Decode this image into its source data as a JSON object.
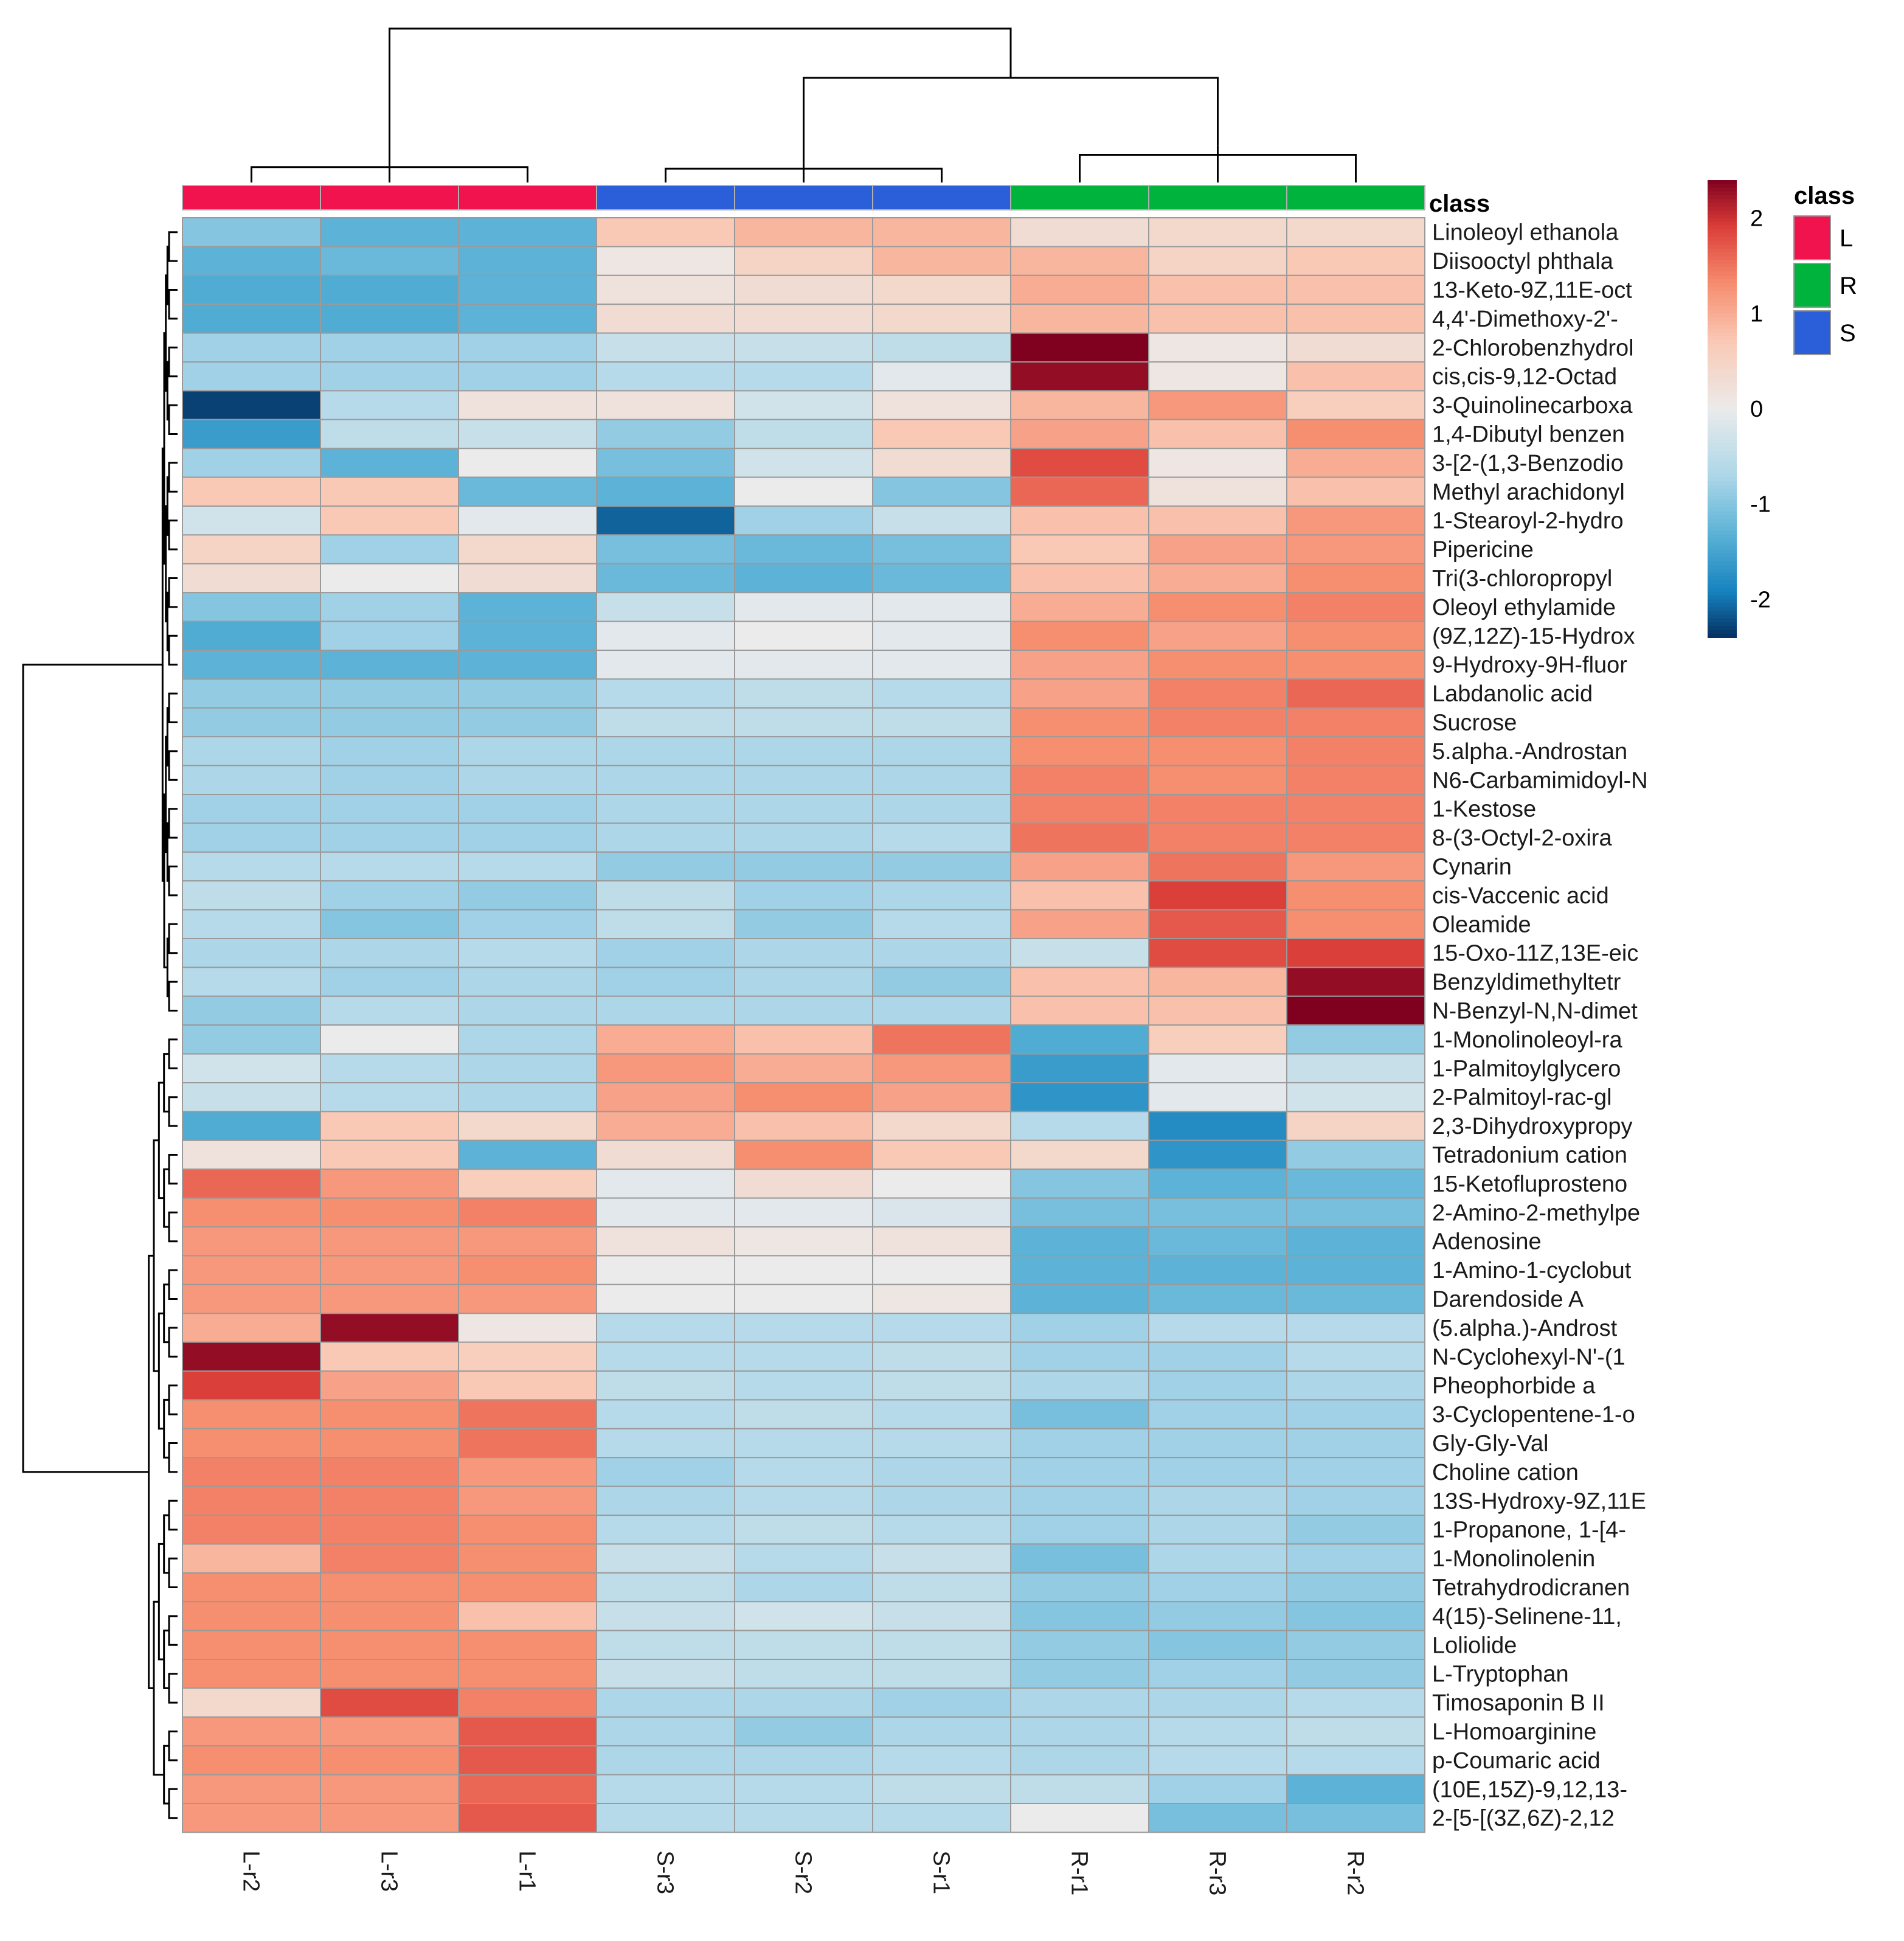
{
  "chart_data": {
    "type": "heatmap",
    "title": "",
    "columns": [
      "L-r2",
      "L-r3",
      "L-r1",
      "S-r3",
      "S-r2",
      "S-r1",
      "R-r1",
      "R-r3",
      "R-r2"
    ],
    "column_classes": [
      "L",
      "L",
      "L",
      "S",
      "S",
      "S",
      "R",
      "R",
      "R"
    ],
    "class_annotation_label": "class",
    "class_legend": {
      "title": "class",
      "items": [
        {
          "name": "L",
          "color": "#f0134d"
        },
        {
          "name": "R",
          "color": "#00b33c"
        },
        {
          "name": "S",
          "color": "#2b5fd9"
        }
      ]
    },
    "color_scale": {
      "min": -2.4,
      "max": 2.4,
      "low_color": "#053061",
      "mid_color": "#ebebeb",
      "high_color": "#800020",
      "ticks": [
        "2",
        "1",
        "0",
        "-1",
        "-2"
      ],
      "tick_values": [
        2,
        1,
        0,
        -1,
        -2
      ]
    },
    "rows": [
      "Linoleoyl ethanola",
      "Diisooctyl phthala",
      "13-Keto-9Z,11E-oct",
      "4,4'-Dimethoxy-2'-",
      "2-Chlorobenzhydrol",
      "cis,cis-9,12-Octad",
      "3-Quinolinecarboxa",
      "1,4-Dibutyl benzen",
      "3-[2-(1,3-Benzodio",
      "Methyl arachidonyl",
      "1-Stearoyl-2-hydro",
      "Pipericine",
      "Tri(3-chloropropyl",
      "Oleoyl ethylamide",
      "(9Z,12Z)-15-Hydrox",
      "9-Hydroxy-9H-fluor",
      "Labdanolic acid",
      "Sucrose",
      "5.alpha.-Androstan",
      "N6-Carbamimidoyl-N",
      "1-Kestose",
      "8-(3-Octyl-2-oxira",
      "Cynarin",
      "cis-Vaccenic acid",
      "Oleamide",
      "15-Oxo-11Z,13E-eic",
      "Benzyldimethyltetr",
      "N-Benzyl-N,N-dimet",
      "1-Monolinoleoyl-ra",
      "1-Palmitoylglycero",
      "2-Palmitoyl-rac-gl",
      "2,3-Dihydroxypropy",
      "Tetradonium cation",
      "15-Ketofluprosteno",
      "2-Amino-2-methylpe",
      "Adenosine",
      "1-Amino-1-cyclobut",
      "Darendoside A",
      "(5.alpha.)-Androst",
      "N-Cyclohexyl-N'-(1",
      "Pheophorbide a",
      "3-Cyclopentene-1-o",
      "Gly-Gly-Val",
      "Choline cation",
      "13S-Hydroxy-9Z,11E",
      "1-Propanone, 1-[4-",
      "1-Monolinolenin",
      "Tetrahydrodicranen",
      "4(15)-Selinene-11,",
      "Loliolide",
      "L-Tryptophan",
      "Timosaponin B II",
      "L-Homoarginine",
      "p-Coumaric acid",
      "(10E,15Z)-9,12,13-",
      "2-[5-[(3Z,6Z)-2,12"
    ],
    "values": [
      [
        -1.0,
        -1.3,
        -1.3,
        0.7,
        0.9,
        0.9,
        0.3,
        0.4,
        0.4
      ],
      [
        -1.3,
        -1.2,
        -1.3,
        0.1,
        0.5,
        0.9,
        0.9,
        0.5,
        0.7
      ],
      [
        -1.4,
        -1.4,
        -1.3,
        0.2,
        0.3,
        0.4,
        1.0,
        0.8,
        0.8
      ],
      [
        -1.4,
        -1.4,
        -1.3,
        0.3,
        0.3,
        0.4,
        0.9,
        0.8,
        0.8
      ],
      [
        -0.8,
        -0.8,
        -0.8,
        -0.4,
        -0.4,
        -0.5,
        2.4,
        0.1,
        0.3
      ],
      [
        -0.8,
        -0.8,
        -0.8,
        -0.6,
        -0.6,
        -0.1,
        2.3,
        0.1,
        0.8
      ],
      [
        -2.3,
        -0.6,
        0.2,
        0.2,
        -0.3,
        0.2,
        0.9,
        1.2,
        0.6
      ],
      [
        -1.6,
        -0.5,
        -0.4,
        -0.9,
        -0.5,
        0.7,
        1.1,
        0.8,
        1.3
      ],
      [
        -0.8,
        -1.3,
        0.0,
        -1.1,
        -0.3,
        0.3,
        1.8,
        0.1,
        1.0
      ],
      [
        0.7,
        0.7,
        -1.2,
        -1.3,
        0.0,
        -1.0,
        1.6,
        0.2,
        0.8
      ],
      [
        -0.3,
        0.7,
        -0.1,
        -2.1,
        -0.8,
        -0.4,
        0.8,
        0.8,
        1.2
      ],
      [
        0.5,
        -0.8,
        0.4,
        -1.1,
        -1.2,
        -1.1,
        0.7,
        1.1,
        1.2
      ],
      [
        0.3,
        0.0,
        0.3,
        -1.2,
        -1.3,
        -1.2,
        0.8,
        1.0,
        1.3
      ],
      [
        -1.0,
        -0.8,
        -1.3,
        -0.4,
        -0.1,
        -0.1,
        1.0,
        1.3,
        1.4
      ],
      [
        -1.4,
        -0.8,
        -1.3,
        -0.1,
        0.0,
        -0.1,
        1.3,
        1.1,
        1.3
      ],
      [
        -1.3,
        -1.3,
        -1.3,
        -0.1,
        -0.1,
        -0.1,
        1.1,
        1.3,
        1.3
      ],
      [
        -0.9,
        -0.9,
        -0.9,
        -0.6,
        -0.5,
        -0.6,
        1.1,
        1.4,
        1.6
      ],
      [
        -0.9,
        -0.9,
        -0.9,
        -0.5,
        -0.5,
        -0.5,
        1.3,
        1.4,
        1.4
      ],
      [
        -0.7,
        -0.8,
        -0.7,
        -0.7,
        -0.7,
        -0.7,
        1.3,
        1.3,
        1.4
      ],
      [
        -0.7,
        -0.8,
        -0.7,
        -0.7,
        -0.7,
        -0.7,
        1.4,
        1.3,
        1.4
      ],
      [
        -0.8,
        -0.8,
        -0.8,
        -0.7,
        -0.7,
        -0.7,
        1.4,
        1.4,
        1.4
      ],
      [
        -0.8,
        -0.8,
        -0.8,
        -0.7,
        -0.7,
        -0.6,
        1.5,
        1.4,
        1.4
      ],
      [
        -0.6,
        -0.6,
        -0.6,
        -0.9,
        -0.9,
        -0.9,
        1.1,
        1.5,
        1.2
      ],
      [
        -0.5,
        -0.8,
        -0.9,
        -0.5,
        -0.8,
        -0.7,
        0.8,
        1.9,
        1.3
      ],
      [
        -0.6,
        -1.0,
        -0.8,
        -0.5,
        -0.9,
        -0.6,
        1.1,
        1.7,
        1.3
      ],
      [
        -0.7,
        -0.7,
        -0.6,
        -0.8,
        -0.7,
        -0.7,
        -0.4,
        1.8,
        1.9
      ],
      [
        -0.6,
        -0.8,
        -0.7,
        -0.8,
        -0.7,
        -0.9,
        0.8,
        0.9,
        2.3
      ],
      [
        -0.9,
        -0.6,
        -0.7,
        -0.7,
        -0.7,
        -0.7,
        0.8,
        0.8,
        2.4
      ],
      [
        -0.9,
        0.0,
        -0.7,
        1.0,
        0.8,
        1.5,
        -1.4,
        0.6,
        -0.9
      ],
      [
        -0.3,
        -0.6,
        -0.7,
        1.2,
        1.0,
        1.2,
        -1.6,
        -0.1,
        -0.4
      ],
      [
        -0.4,
        -0.6,
        -0.7,
        1.1,
        1.3,
        1.1,
        -1.7,
        -0.1,
        -0.3
      ],
      [
        -1.4,
        0.7,
        0.4,
        1.0,
        0.8,
        0.4,
        -0.6,
        -1.8,
        0.5
      ],
      [
        0.2,
        0.7,
        -1.3,
        0.3,
        1.3,
        0.7,
        0.4,
        -1.7,
        -0.9
      ],
      [
        1.6,
        1.2,
        0.6,
        -0.1,
        0.3,
        0.0,
        -1.0,
        -1.3,
        -1.2
      ],
      [
        1.3,
        1.3,
        1.4,
        -0.1,
        -0.1,
        -0.2,
        -1.1,
        -1.1,
        -1.1
      ],
      [
        1.2,
        1.2,
        1.2,
        0.2,
        0.1,
        0.2,
        -1.3,
        -1.2,
        -1.3
      ],
      [
        1.2,
        1.2,
        1.3,
        0.0,
        0.0,
        0.0,
        -1.3,
        -1.3,
        -1.3
      ],
      [
        1.2,
        1.2,
        1.2,
        0.0,
        0.0,
        0.1,
        -1.3,
        -1.2,
        -1.2
      ],
      [
        1.0,
        2.3,
        0.1,
        -0.6,
        -0.6,
        -0.6,
        -0.8,
        -0.6,
        -0.6
      ],
      [
        2.3,
        0.7,
        0.6,
        -0.6,
        -0.6,
        -0.5,
        -0.8,
        -0.8,
        -0.6
      ],
      [
        1.9,
        1.1,
        0.7,
        -0.5,
        -0.6,
        -0.5,
        -0.7,
        -0.8,
        -0.7
      ],
      [
        1.3,
        1.3,
        1.5,
        -0.6,
        -0.5,
        -0.6,
        -1.1,
        -0.8,
        -0.8
      ],
      [
        1.3,
        1.3,
        1.5,
        -0.6,
        -0.6,
        -0.6,
        -0.8,
        -0.8,
        -0.8
      ],
      [
        1.4,
        1.4,
        1.2,
        -0.8,
        -0.6,
        -0.7,
        -0.8,
        -0.8,
        -0.8
      ],
      [
        1.4,
        1.4,
        1.2,
        -0.7,
        -0.6,
        -0.7,
        -0.8,
        -0.7,
        -0.8
      ],
      [
        1.4,
        1.4,
        1.3,
        -0.6,
        -0.5,
        -0.6,
        -0.8,
        -0.7,
        -0.9
      ],
      [
        0.9,
        1.4,
        1.3,
        -0.4,
        -0.6,
        -0.4,
        -1.1,
        -0.7,
        -0.8
      ],
      [
        1.3,
        1.3,
        1.3,
        -0.5,
        -0.7,
        -0.5,
        -0.9,
        -0.8,
        -0.9
      ],
      [
        1.3,
        1.3,
        0.8,
        -0.4,
        -0.3,
        -0.4,
        -1.0,
        -0.9,
        -1.0
      ],
      [
        1.3,
        1.3,
        1.3,
        -0.5,
        -0.5,
        -0.5,
        -0.9,
        -1.0,
        -0.9
      ],
      [
        1.3,
        1.3,
        1.3,
        -0.4,
        -0.5,
        -0.5,
        -0.9,
        -0.8,
        -0.9
      ],
      [
        0.4,
        1.8,
        1.4,
        -0.7,
        -0.7,
        -0.8,
        -0.7,
        -0.7,
        -0.6
      ],
      [
        1.2,
        1.2,
        1.7,
        -0.7,
        -0.9,
        -0.7,
        -0.7,
        -0.6,
        -0.5
      ],
      [
        1.3,
        1.3,
        1.7,
        -0.7,
        -0.7,
        -0.6,
        -0.7,
        -0.6,
        -0.6
      ],
      [
        1.2,
        1.2,
        1.6,
        -0.6,
        -0.6,
        -0.5,
        -0.5,
        -0.8,
        -1.3
      ],
      [
        1.2,
        1.2,
        1.7,
        -0.6,
        -0.6,
        -0.6,
        0.0,
        -1.1,
        -1.1
      ]
    ],
    "column_dendrogram": [
      [
        0,
        2,
        0.5
      ],
      [
        1,
        9,
        0.9
      ],
      [
        3,
        5,
        0.45
      ],
      [
        4,
        11,
        0.6
      ],
      [
        6,
        8,
        0.9
      ],
      [
        7,
        13,
        1.2
      ],
      [
        12,
        14,
        3.4
      ],
      [
        10,
        15,
        5.0
      ]
    ],
    "row_dendrogram_top_split": [
      28,
      56
    ]
  }
}
